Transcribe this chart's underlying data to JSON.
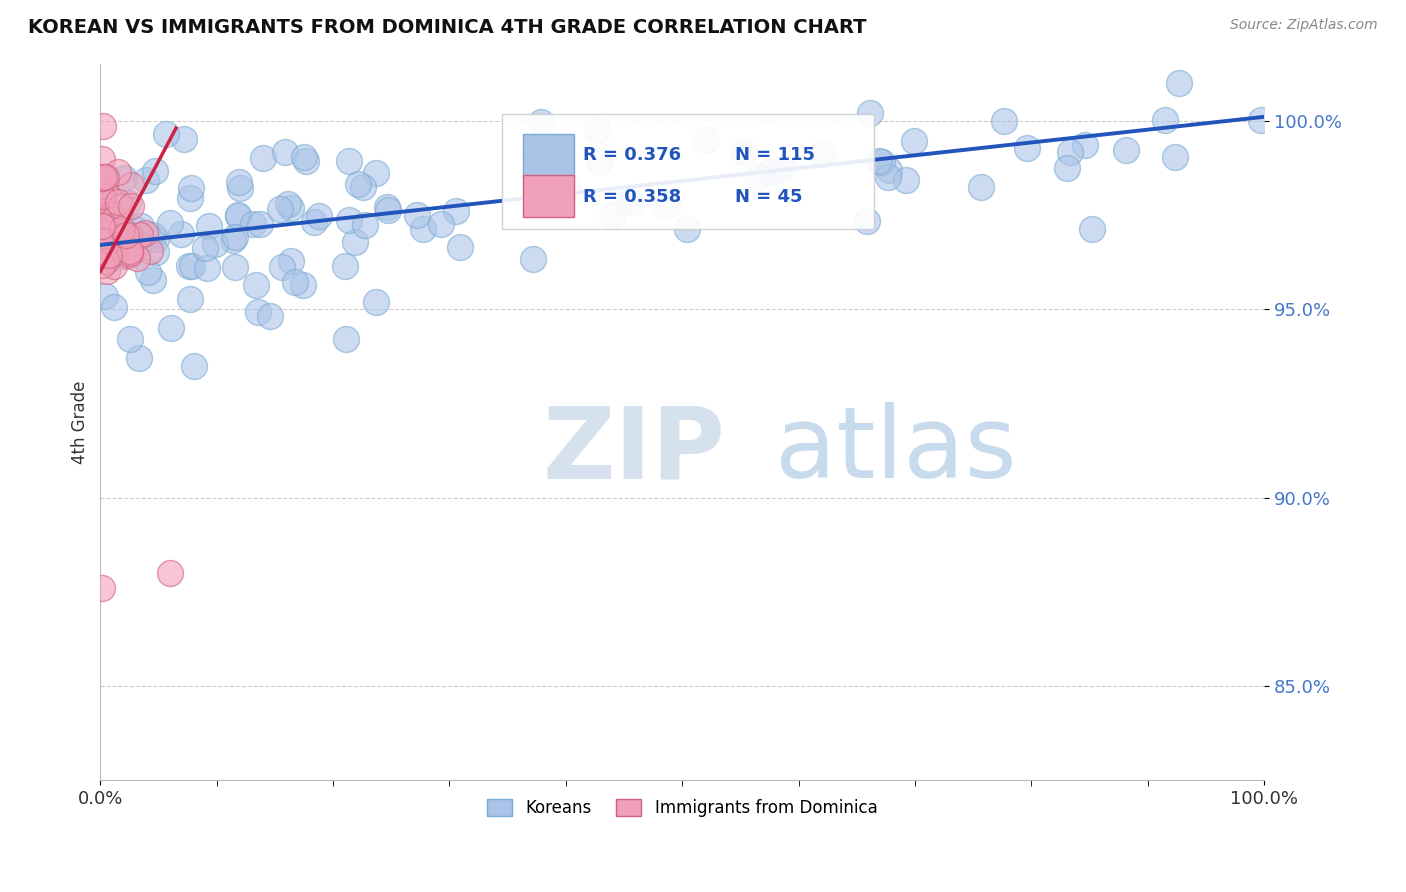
{
  "title": "KOREAN VS IMMIGRANTS FROM DOMINICA 4TH GRADE CORRELATION CHART",
  "source_text": "Source: ZipAtlas.com",
  "ylabel": "4th Grade",
  "xlim": [
    0.0,
    1.0
  ],
  "ylim": [
    0.825,
    1.015
  ],
  "yticks": [
    0.85,
    0.9,
    0.95,
    1.0
  ],
  "ytick_labels": [
    "85.0%",
    "90.0%",
    "95.0%",
    "100.0%"
  ],
  "xticks": [
    0.0,
    1.0
  ],
  "xtick_labels": [
    "0.0%",
    "100.0%"
  ],
  "grid_color": "#cccccc",
  "background_color": "#ffffff",
  "watermark_zip": "ZIP",
  "watermark_atlas": "atlas",
  "blue_color": "#aac4e8",
  "blue_edge_color": "#7aaad0",
  "pink_color": "#f0a0b8",
  "pink_edge_color": "#d06080",
  "blue_line_color": "#2255bb",
  "pink_line_color": "#cc2244",
  "tick_color": "#4477cc",
  "R_blue": 0.376,
  "N_blue": 115,
  "R_pink": 0.358,
  "N_pink": 45,
  "legend_label_blue": "Koreans",
  "legend_label_pink": "Immigrants from Dominica",
  "blue_trend_x": [
    0.0,
    1.0
  ],
  "blue_trend_y": [
    0.967,
    1.001
  ],
  "pink_trend_x": [
    0.0,
    0.065
  ],
  "pink_trend_y": [
    0.96,
    0.998
  ]
}
